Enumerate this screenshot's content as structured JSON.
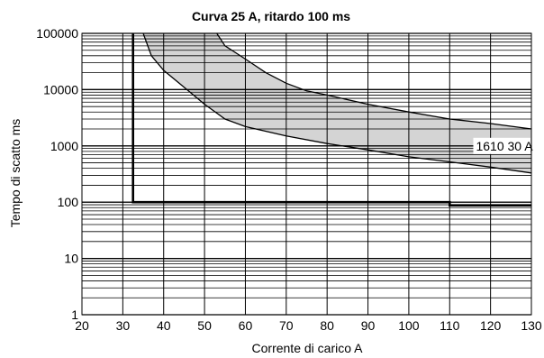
{
  "chart_data": {
    "type": "line",
    "title": "Curva 25 A, ritardo 100 ms",
    "xlabel": "Corrente di carico A",
    "ylabel": "Tempo di scatto ms",
    "xscale": "linear",
    "yscale": "log",
    "xlim": [
      20,
      130
    ],
    "ylim": [
      1,
      100000
    ],
    "x_ticks": [
      20,
      30,
      40,
      50,
      60,
      70,
      80,
      90,
      100,
      110,
      120,
      130
    ],
    "y_ticks": [
      {
        "value": 1,
        "label": "1"
      },
      {
        "value": 10,
        "label": "10"
      },
      {
        "value": 100,
        "label": "100"
      },
      {
        "value": 1000,
        "label": "1000"
      },
      {
        "value": 10000,
        "label": "10000"
      },
      {
        "value": 100000,
        "label": "100000"
      }
    ],
    "grid": true,
    "colors": {
      "band_fill": "#d4d4d4",
      "curve": "#000000",
      "grid": "#000000"
    },
    "series": [
      {
        "role": "band-lower-curve",
        "x": [
          35,
          37,
          40,
          45,
          50,
          55,
          60,
          70,
          80,
          90,
          100,
          110,
          120,
          130
        ],
        "y": [
          100000,
          40000,
          22000,
          11000,
          5500,
          3000,
          2200,
          1500,
          1100,
          850,
          640,
          520,
          420,
          330
        ]
      },
      {
        "role": "band-upper-curve",
        "x": [
          53,
          55,
          60,
          65,
          70,
          75,
          80,
          90,
          100,
          110,
          120,
          130
        ],
        "y": [
          100000,
          60000,
          35000,
          20000,
          13000,
          9500,
          8000,
          5500,
          4000,
          3000,
          2500,
          2000
        ]
      },
      {
        "role": "delay-line",
        "x": [
          32.5,
          32.5,
          110,
          110,
          130
        ],
        "y": [
          100000,
          100,
          100,
          88,
          88
        ]
      }
    ],
    "annotations": [
      {
        "text": "1610 30 A",
        "x": 116,
        "y": 1000
      }
    ]
  }
}
